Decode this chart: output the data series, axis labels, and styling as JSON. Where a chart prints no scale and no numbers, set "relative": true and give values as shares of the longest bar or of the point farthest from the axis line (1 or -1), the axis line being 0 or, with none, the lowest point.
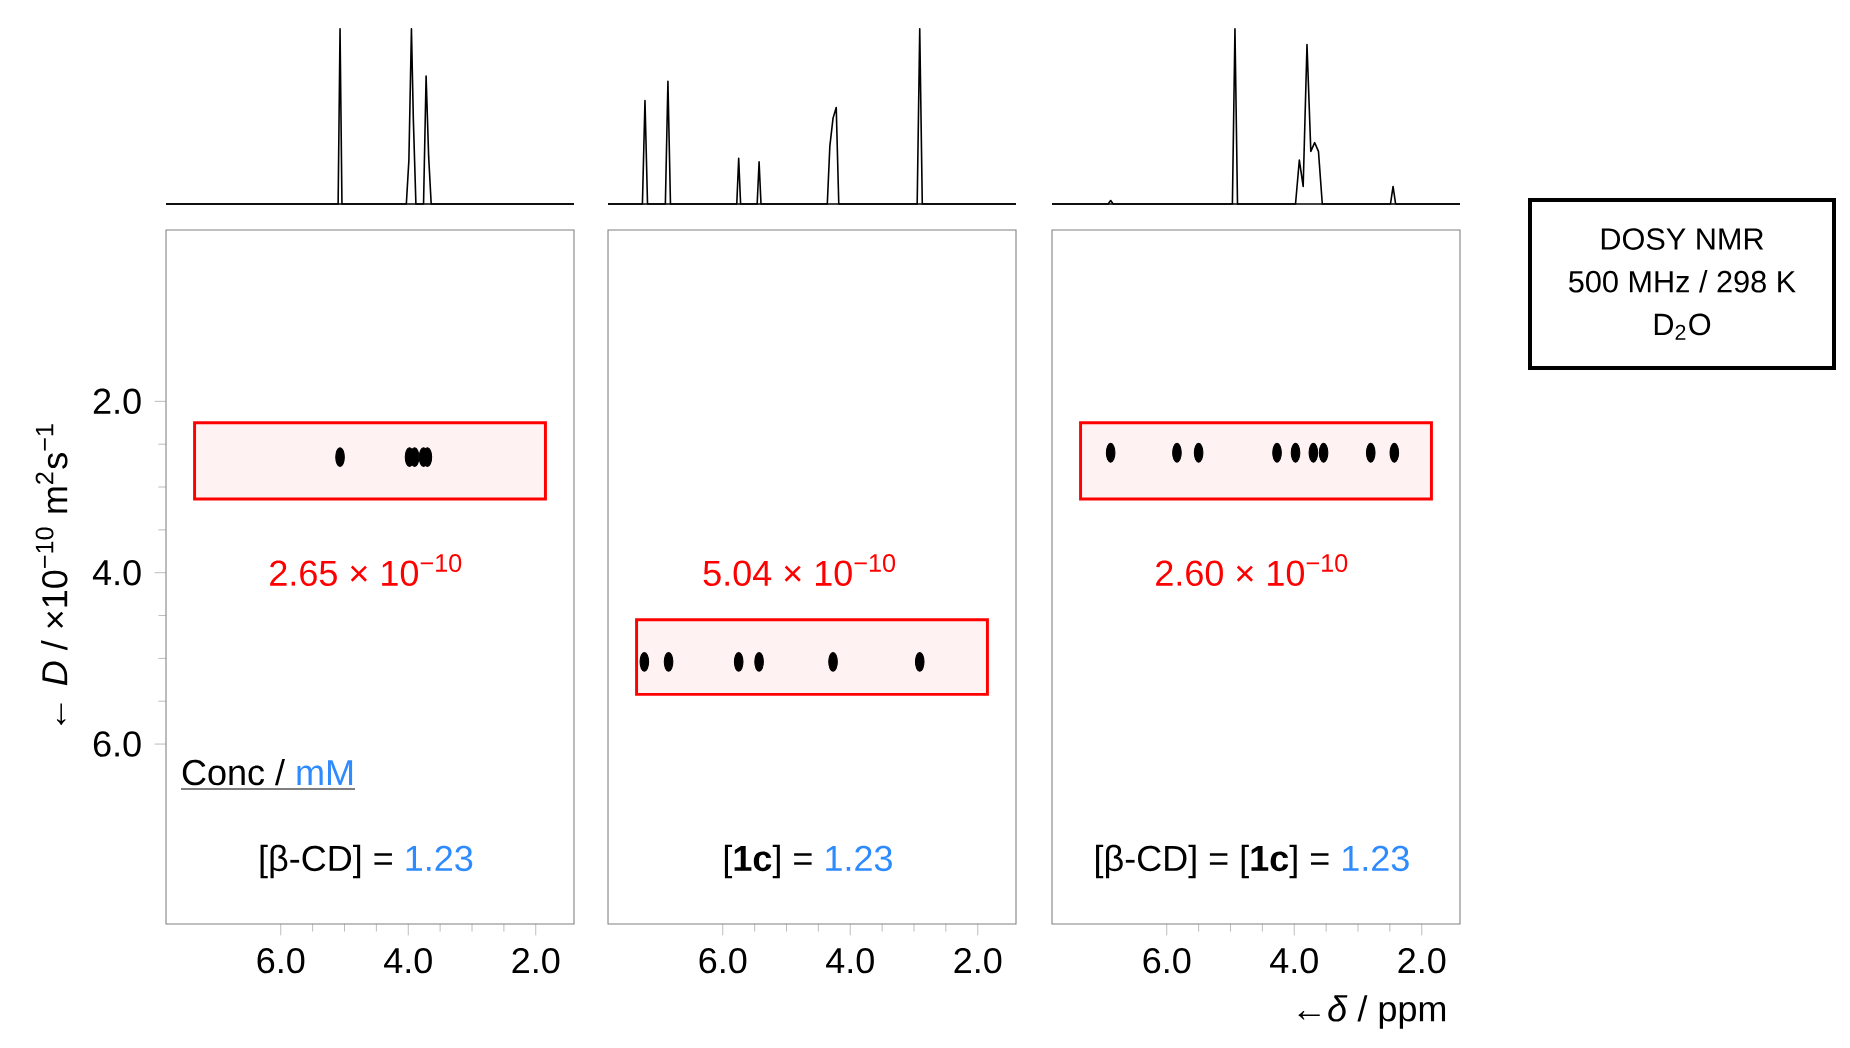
{
  "chart_data": [
    {
      "type": "line",
      "relative": true,
      "tick_labels": false,
      "color": "#000000",
      "xlim": [
        7.8,
        1.4
      ],
      "x": [
        7.8,
        5.1,
        5.07,
        5.04,
        4.03,
        3.99,
        3.95,
        3.92,
        3.88,
        3.76,
        3.72,
        3.68,
        3.64,
        1.4
      ],
      "values": [
        0,
        0,
        1.0,
        0,
        0,
        0.25,
        1.0,
        0.48,
        0,
        0,
        0.73,
        0.27,
        0,
        0
      ]
    },
    {
      "type": "line",
      "relative": true,
      "tick_labels": false,
      "color": "#000000",
      "xlim": [
        7.8,
        1.4
      ],
      "x": [
        7.8,
        7.26,
        7.22,
        7.18,
        6.9,
        6.86,
        6.82,
        5.78,
        5.75,
        5.72,
        5.46,
        5.43,
        5.4,
        4.36,
        4.32,
        4.27,
        4.22,
        4.18,
        2.95,
        2.91,
        2.87,
        1.4
      ],
      "values": [
        0,
        0,
        0.59,
        0,
        0,
        0.7,
        0,
        0,
        0.26,
        0,
        0,
        0.24,
        0,
        0,
        0.33,
        0.49,
        0.55,
        0,
        0,
        1.0,
        0,
        0
      ]
    },
    {
      "type": "line",
      "relative": true,
      "tick_labels": false,
      "color": "#000000",
      "xlim": [
        7.8,
        1.4
      ],
      "x": [
        7.8,
        6.92,
        6.88,
        6.84,
        4.97,
        4.93,
        4.89,
        3.98,
        3.92,
        3.86,
        3.8,
        3.74,
        3.68,
        3.62,
        3.56,
        2.49,
        2.45,
        2.41,
        1.4
      ],
      "values": [
        0,
        0,
        0.02,
        0,
        0,
        1.0,
        0,
        0,
        0.25,
        0.1,
        0.91,
        0.3,
        0.35,
        0.3,
        0,
        0,
        0.1,
        0,
        0
      ]
    },
    {
      "type": "scatter",
      "color": "#000000",
      "xlim": [
        7.8,
        1.4
      ],
      "ylim": [
        8.1,
        0
      ],
      "ylabel": "← *D* / ×10$^{−10}$ m$^{2}$s$^{−1}$",
      "xticks": [
        {
          "value": 6,
          "label": "6.0"
        },
        {
          "value": 4,
          "label": "4.0"
        },
        {
          "value": 2,
          "label": "2.0"
        }
      ],
      "yticks": [
        {
          "value": 2,
          "label": "2.0"
        },
        {
          "value": 4,
          "label": "4.0"
        },
        {
          "value": 6,
          "label": "6.0"
        }
      ],
      "x": [
        5.07,
        3.98,
        3.9,
        3.76,
        3.7
      ],
      "values": [
        2.65,
        2.65,
        2.65,
        2.65,
        2.65
      ],
      "bands": [
        {
          "axis": "y",
          "from": 2.25,
          "to": 3.14,
          "color": "#ff0000"
        }
      ],
      "annotations": [
        "2.65 × 10$^{−10}$",
        "Conc / ",
        "mM",
        "[β-CD] = ",
        "1.23"
      ]
    },
    {
      "type": "scatter",
      "color": "#000000",
      "xlim": [
        7.8,
        1.4
      ],
      "ylim": [
        8.1,
        0
      ],
      "tick_labels": "x",
      "xticks": [
        {
          "value": 6,
          "label": "6.0"
        },
        {
          "value": 4,
          "label": "4.0"
        },
        {
          "value": 2,
          "label": "2.0"
        }
      ],
      "x": [
        7.23,
        6.85,
        5.75,
        5.43,
        4.27,
        2.91
      ],
      "values": [
        5.04,
        5.04,
        5.04,
        5.04,
        5.04,
        5.04
      ],
      "bands": [
        {
          "axis": "y",
          "from": 4.55,
          "to": 5.42,
          "color": "#ff0000"
        }
      ],
      "annotations": [
        "5.04 × 10$^{−10}$",
        "[**1c**] = ",
        "1.23"
      ]
    },
    {
      "type": "scatter",
      "color": "#000000",
      "xlim": [
        7.8,
        1.4
      ],
      "ylim": [
        8.1,
        0
      ],
      "tick_labels": "x",
      "xlabel": "←*δ* / ppm",
      "xticks": [
        {
          "value": 6,
          "label": "6.0"
        },
        {
          "value": 4,
          "label": "4.0"
        },
        {
          "value": 2,
          "label": "2.0"
        }
      ],
      "x": [
        6.88,
        5.84,
        5.5,
        4.27,
        3.98,
        3.7,
        3.54,
        2.8,
        2.43
      ],
      "values": [
        2.6,
        2.6,
        2.6,
        2.6,
        2.6,
        2.6,
        2.6,
        2.6,
        2.6
      ],
      "bands": [
        {
          "axis": "y",
          "from": 2.25,
          "to": 3.14,
          "color": "#ff0000"
        }
      ],
      "annotations": [
        "2.60 × 10$^{−10}$",
        "[β-CD] = [**1c**] = ",
        "1.23"
      ]
    },
    {
      "type": "other",
      "annotations": [
        "DOSY NMR",
        "500 MHz / 298 K",
        "D$_{2}$O"
      ]
    }
  ]
}
